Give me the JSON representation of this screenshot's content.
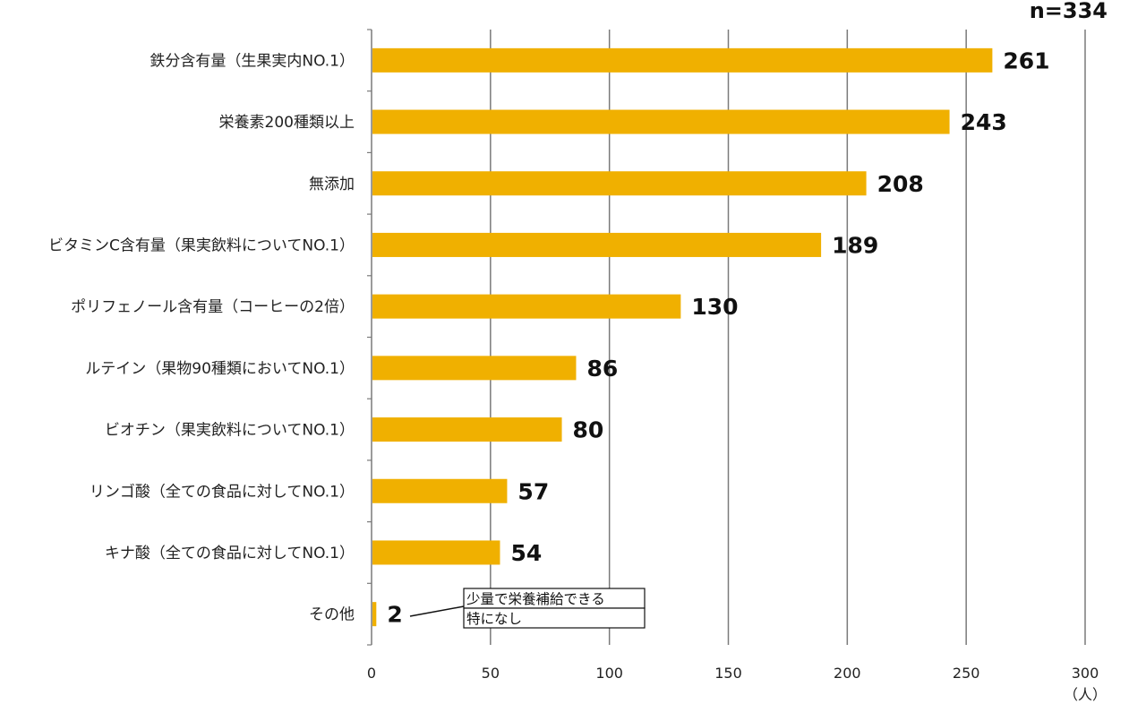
{
  "chart_data": {
    "type": "bar",
    "orientation": "horizontal",
    "sample_size_label": "n=334",
    "unit_label": "（人）",
    "xlim": [
      0,
      300
    ],
    "xticks": [
      0,
      50,
      100,
      150,
      200,
      250,
      300
    ],
    "grid": true,
    "bar_color": "#F0B000",
    "categories": [
      "鉄分含有量（生果実内NO.1）",
      "栄養素200種類以上",
      "無添加",
      "ビタミンC含有量（果実飲料についてNO.1）",
      "ポリフェノール含有量（コーヒーの2倍）",
      "ルテイン（果物90種類においてNO.1）",
      "ビオチン（果実飲料についてNO.1）",
      "リンゴ酸（全ての食品に対してNO.1）",
      "キナ酸（全ての食品に対してNO.1）",
      "その他"
    ],
    "values": [
      261,
      243,
      208,
      189,
      130,
      86,
      80,
      57,
      54,
      2
    ],
    "annotation": {
      "target_category": "その他",
      "lines": [
        "少量で栄養補給できる",
        "特になし"
      ]
    }
  }
}
